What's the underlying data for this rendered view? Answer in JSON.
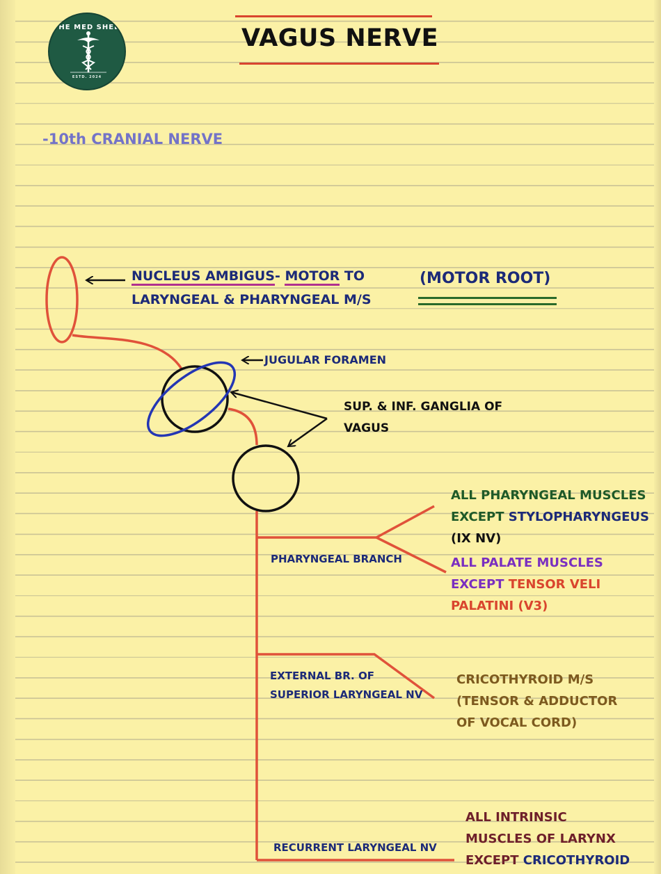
{
  "logo": {
    "name": "THE MED SHED",
    "established": "ESTD. 2024"
  },
  "title": "VAGUS NERVE",
  "subtitle": "-10th CRANIAL NERVE",
  "motor_root": "(MOTOR ROOT)",
  "nucleus": {
    "part1": "NUCLEUS AMBIGUS",
    "dash": "-",
    "part2": "MOTOR",
    "part3": "TO",
    "line2": "LARYNGEAL & PHARYNGEAL M/S"
  },
  "jugular_foramen": "JUGULAR FORAMEN",
  "ganglia": {
    "line1": "SUP. & INF. GANGLIA OF",
    "line2": "VAGUS"
  },
  "branches": {
    "pharyngeal": "PHARYNGEAL BRANCH",
    "external_line1": "EXTERNAL BR. OF",
    "external_line2": "SUPERIOR LARYNGEAL NV",
    "recurrent": "RECURRENT LARYNGEAL NV"
  },
  "targets": {
    "pharyngeal_muscles": {
      "line1": "ALL PHARYNGEAL MUSCLES",
      "line2a": "EXCEPT ",
      "line2b": "STYLOPHARYNGEUS",
      "line3": "(IX NV)"
    },
    "palate_muscles": {
      "line1": "ALL PALATE MUSCLES",
      "line2a": "EXCEPT ",
      "line2b": "TENSOR VELI",
      "line3": "PALATINI (V3)"
    },
    "cricothyroid": {
      "line1": "CRICOTHYROID M/S",
      "line2": "(TENSOR & ADDUCTOR",
      "line3": "OF VOCAL CORD)"
    },
    "intrinsic": {
      "line1": "ALL INTRINSIC",
      "line2": "MUSCLES OF LARYNX",
      "line3a": "EXCEPT ",
      "line3b": "CRICOTHYROID"
    }
  },
  "colors": {
    "paper": "#fbf1a6",
    "nerve": "#e0523a",
    "navy": "#1c2a78",
    "lavender": "#7373c8",
    "green": "#1f5a28",
    "purple": "#7a2fc0",
    "brown": "#7d5a1e",
    "maroon": "#6e1f2a",
    "blue_ring": "#2436b4"
  }
}
